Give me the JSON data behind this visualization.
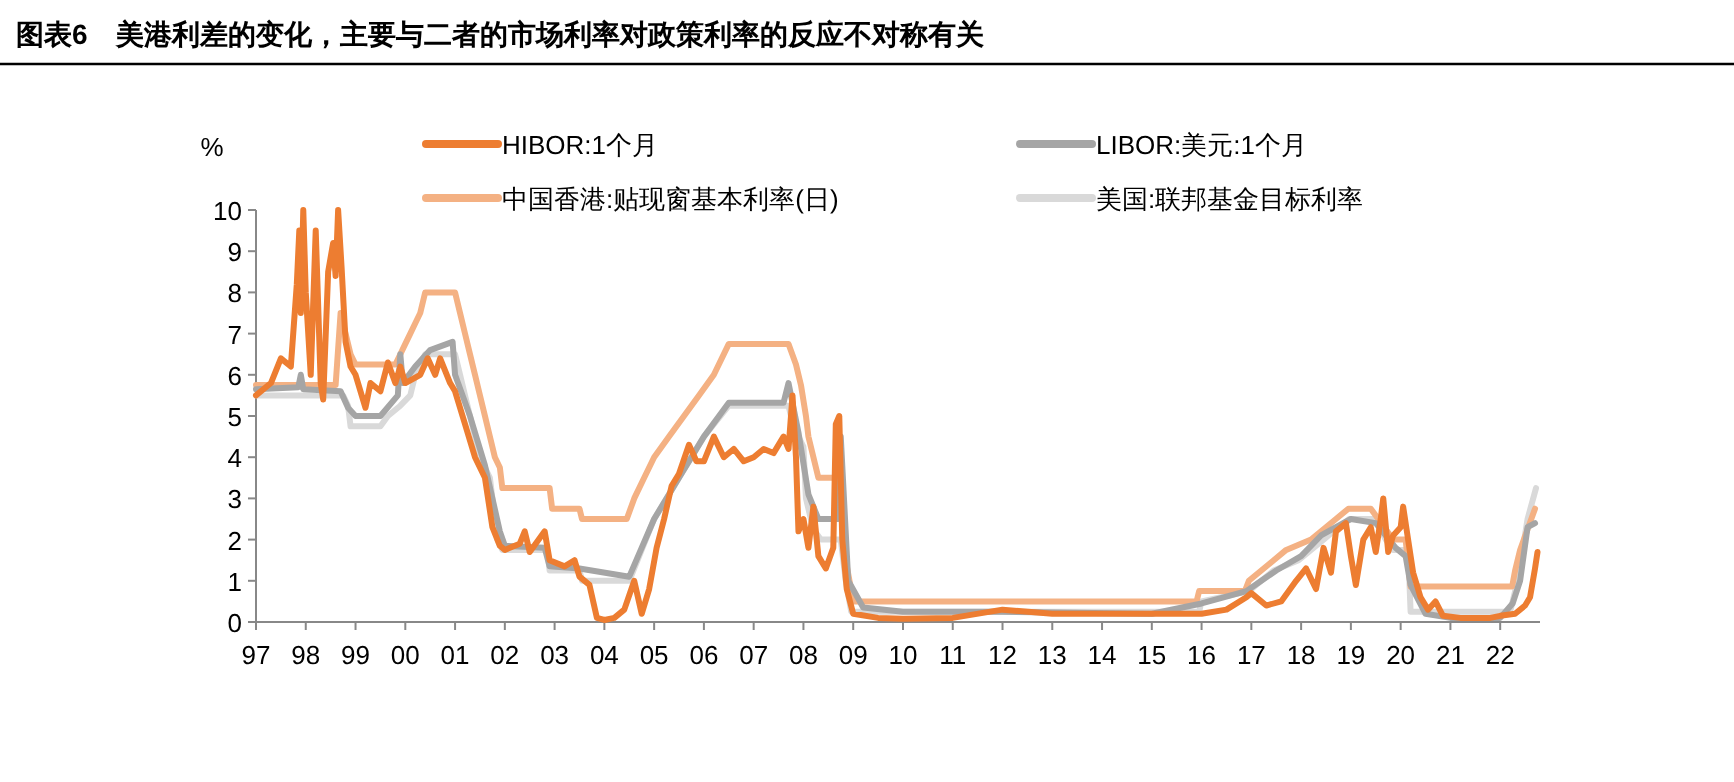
{
  "chart_data": {
    "type": "line",
    "title": "图表6　美港利差的变化，主要与二者的市场利率对政策利率的反应不对称有关",
    "ylabel": "%",
    "xlim": [
      1997,
      2022.8
    ],
    "ylim": [
      0,
      10
    ],
    "yticks": [
      0,
      1,
      2,
      3,
      4,
      5,
      6,
      7,
      8,
      9,
      10
    ],
    "xticks": [
      {
        "value": 1997,
        "label": "97"
      },
      {
        "value": 1998,
        "label": "98"
      },
      {
        "value": 1999,
        "label": "99"
      },
      {
        "value": 2000,
        "label": "00"
      },
      {
        "value": 2001,
        "label": "01"
      },
      {
        "value": 2002,
        "label": "02"
      },
      {
        "value": 2003,
        "label": "03"
      },
      {
        "value": 2004,
        "label": "04"
      },
      {
        "value": 2005,
        "label": "05"
      },
      {
        "value": 2006,
        "label": "06"
      },
      {
        "value": 2007,
        "label": "07"
      },
      {
        "value": 2008,
        "label": "08"
      },
      {
        "value": 2009,
        "label": "09"
      },
      {
        "value": 2010,
        "label": "10"
      },
      {
        "value": 2011,
        "label": "11"
      },
      {
        "value": 2012,
        "label": "12"
      },
      {
        "value": 2013,
        "label": "13"
      },
      {
        "value": 2014,
        "label": "14"
      },
      {
        "value": 2015,
        "label": "15"
      },
      {
        "value": 2016,
        "label": "16"
      },
      {
        "value": 2017,
        "label": "17"
      },
      {
        "value": 2018,
        "label": "18"
      },
      {
        "value": 2019,
        "label": "19"
      },
      {
        "value": 2020,
        "label": "20"
      },
      {
        "value": 2021,
        "label": "21"
      },
      {
        "value": 2022,
        "label": "22"
      }
    ],
    "grid": false,
    "legend": "top",
    "marker": "none",
    "line_style": "solid",
    "series": [
      {
        "name": "HIBOR:1个月",
        "color": "#ed7d31",
        "x": [
          1997.0,
          1997.3,
          1997.5,
          1997.7,
          1997.82,
          1997.87,
          1997.9,
          1997.95,
          1998.0,
          1998.1,
          1998.2,
          1998.3,
          1998.35,
          1998.45,
          1998.55,
          1998.6,
          1998.65,
          1998.72,
          1998.8,
          1998.9,
          1999.0,
          1999.2,
          1999.3,
          1999.5,
          1999.65,
          1999.8,
          1999.9,
          2000.0,
          2000.3,
          2000.45,
          2000.6,
          2000.7,
          2000.9,
          2001.0,
          2001.2,
          2001.4,
          2001.6,
          2001.75,
          2001.9,
          2002.0,
          2002.3,
          2002.4,
          2002.5,
          2002.8,
          2002.9,
          2003.2,
          2003.4,
          2003.5,
          2003.7,
          2003.85,
          2004.0,
          2004.2,
          2004.4,
          2004.6,
          2004.75,
          2004.9,
          2005.05,
          2005.2,
          2005.35,
          2005.5,
          2005.7,
          2005.85,
          2006.0,
          2006.2,
          2006.4,
          2006.6,
          2006.8,
          2007.0,
          2007.2,
          2007.4,
          2007.6,
          2007.7,
          2007.78,
          2007.85,
          2007.9,
          2008.0,
          2008.1,
          2008.2,
          2008.3,
          2008.45,
          2008.6,
          2008.65,
          2008.72,
          2008.78,
          2008.87,
          2009.0,
          2009.5,
          2010,
          2011,
          2012,
          2013,
          2014,
          2015,
          2016,
          2016.5,
          2016.9,
          2017.0,
          2017.3,
          2017.6,
          2017.9,
          2018.1,
          2018.3,
          2018.45,
          2018.6,
          2018.7,
          2018.9,
          2019.0,
          2019.1,
          2019.25,
          2019.4,
          2019.5,
          2019.6,
          2019.65,
          2019.75,
          2019.85,
          2020.0,
          2020.05,
          2020.15,
          2020.25,
          2020.4,
          2020.55,
          2020.7,
          2020.85,
          2021.2,
          2021.8,
          2022.0,
          2022.3,
          2022.5,
          2022.6,
          2022.7,
          2022.75
        ],
        "values": [
          5.5,
          5.8,
          6.4,
          6.2,
          8.2,
          9.5,
          7.5,
          10,
          8,
          6.0,
          9.5,
          5.8,
          5.4,
          8.5,
          9.2,
          8.4,
          10,
          8.6,
          6.8,
          6.2,
          6.0,
          5.2,
          5.8,
          5.6,
          6.3,
          5.8,
          6.2,
          5.8,
          6.0,
          6.4,
          6.0,
          6.4,
          5.8,
          5.6,
          4.8,
          4.0,
          3.5,
          2.3,
          1.85,
          1.75,
          1.9,
          2.2,
          1.7,
          2.2,
          1.5,
          1.35,
          1.5,
          1.1,
          0.9,
          0.1,
          0.05,
          0.1,
          0.3,
          1.0,
          0.2,
          0.8,
          1.8,
          2.5,
          3.3,
          3.6,
          4.3,
          3.9,
          3.9,
          4.5,
          4.0,
          4.2,
          3.9,
          4.0,
          4.2,
          4.1,
          4.5,
          4.2,
          5.5,
          4.0,
          2.2,
          2.5,
          1.8,
          2.8,
          1.6,
          1.3,
          1.8,
          4.8,
          5.0,
          2.0,
          0.8,
          0.2,
          0.1,
          0.08,
          0.1,
          0.3,
          0.2,
          0.2,
          0.2,
          0.2,
          0.3,
          0.6,
          0.7,
          0.4,
          0.5,
          1.0,
          1.3,
          0.8,
          1.8,
          1.2,
          2.2,
          2.4,
          1.6,
          0.9,
          2.0,
          2.3,
          1.7,
          2.5,
          3.0,
          1.7,
          2.1,
          2.3,
          2.8,
          2.0,
          1.2,
          0.6,
          0.3,
          0.5,
          0.15,
          0.1,
          0.1,
          0.15,
          0.2,
          0.4,
          0.6,
          1.3,
          1.7
        ]
      },
      {
        "name": "LIBOR:美元:1个月",
        "color": "#a5a5a5",
        "x": [
          1997.0,
          1997.85,
          1997.9,
          1997.95,
          1998.7,
          1998.85,
          1999.0,
          1999.5,
          1999.85,
          1999.9,
          1999.95,
          2000.2,
          2000.5,
          2000.95,
          2001.0,
          2001.3,
          2001.6,
          2001.9,
          2002.0,
          2002.8,
          2002.9,
          2003.5,
          2004.5,
          2005.0,
          2005.5,
          2006.0,
          2006.5,
          2007.6,
          2007.7,
          2007.9,
          2008.1,
          2008.3,
          2008.7,
          2008.75,
          2008.9,
          2009.2,
          2010,
          2012,
          2015,
          2016,
          2016.9,
          2017.2,
          2017.5,
          2018.0,
          2018.4,
          2018.7,
          2019.0,
          2019.5,
          2019.9,
          2020.1,
          2020.2,
          2020.5,
          2021.0,
          2022.0,
          2022.25,
          2022.4,
          2022.55,
          2022.7
        ],
        "values": [
          5.65,
          5.7,
          6.0,
          5.65,
          5.6,
          5.2,
          5.0,
          5.0,
          5.5,
          6.5,
          5.8,
          6.2,
          6.6,
          6.8,
          6.0,
          5.0,
          3.8,
          2.2,
          1.85,
          1.8,
          1.35,
          1.3,
          1.1,
          2.5,
          3.5,
          4.5,
          5.32,
          5.32,
          5.8,
          4.6,
          3.1,
          2.5,
          2.5,
          4.5,
          1.0,
          0.35,
          0.25,
          0.25,
          0.2,
          0.45,
          0.75,
          1.0,
          1.25,
          1.6,
          2.1,
          2.3,
          2.5,
          2.4,
          1.8,
          1.6,
          0.9,
          0.2,
          0.1,
          0.1,
          0.45,
          1.0,
          2.3,
          2.4
        ]
      },
      {
        "name": "中国香港:贴现窗基本利率(日)",
        "color": "#f4b183",
        "x": [
          1997.0,
          1998.6,
          1998.7,
          1998.9,
          1999.0,
          1999.8,
          1999.9,
          2000.0,
          2000.1,
          2000.2,
          2000.3,
          2000.4,
          2001.0,
          2001.1,
          2001.2,
          2001.3,
          2001.4,
          2001.5,
          2001.6,
          2001.7,
          2001.8,
          2001.9,
          2001.95,
          2002.9,
          2002.95,
          2003.5,
          2003.55,
          2004.45,
          2004.6,
          2004.8,
          2005.0,
          2005.3,
          2005.6,
          2005.9,
          2006.2,
          2006.5,
          2007.7,
          2007.85,
          2007.95,
          2008.05,
          2008.1,
          2008.3,
          2008.7,
          2008.85,
          2009.0,
          2015.9,
          2015.95,
          2016.87,
          2016.95,
          2017.2,
          2017.45,
          2017.7,
          2018.2,
          2018.45,
          2018.7,
          2018.95,
          2019.4,
          2019.55,
          2019.7,
          2019.85,
          2020.1,
          2020.2,
          2022.24,
          2022.3,
          2022.4,
          2022.55,
          2022.7
        ],
        "values": [
          5.75,
          5.75,
          7.5,
          6.5,
          6.25,
          6.25,
          6.5,
          6.75,
          7.0,
          7.25,
          7.5,
          8.0,
          8.0,
          7.5,
          7.0,
          6.5,
          6.0,
          5.5,
          5.0,
          4.5,
          4.0,
          3.75,
          3.25,
          3.25,
          2.75,
          2.75,
          2.5,
          2.5,
          3.0,
          3.5,
          4.0,
          4.5,
          5.0,
          5.5,
          6.0,
          6.75,
          6.75,
          6.25,
          5.75,
          5.0,
          4.5,
          3.5,
          3.5,
          1.5,
          0.5,
          0.5,
          0.75,
          0.75,
          1.0,
          1.25,
          1.5,
          1.75,
          2.0,
          2.25,
          2.5,
          2.75,
          2.75,
          2.5,
          2.25,
          2.0,
          2.0,
          0.86,
          0.86,
          1.25,
          1.75,
          2.25,
          2.75
        ]
      },
      {
        "name": "美国:联邦基金目标利率",
        "color": "#d9d9d9",
        "x": [
          1997.0,
          1998.75,
          1998.85,
          1998.9,
          1999.5,
          1999.65,
          1999.9,
          2000.1,
          2000.2,
          2000.4,
          2001.0,
          2001.1,
          2001.2,
          2001.3,
          2001.4,
          2001.5,
          2001.6,
          2001.7,
          2001.75,
          2001.8,
          2001.85,
          2001.95,
          2002.85,
          2002.9,
          2003.5,
          2003.55,
          2004.5,
          2005.0,
          2005.5,
          2006.0,
          2006.5,
          2007.7,
          2007.8,
          2007.9,
          2008.0,
          2008.05,
          2008.2,
          2008.35,
          2008.75,
          2008.85,
          2008.96,
          2015.95,
          2016.0,
          2016.95,
          2017.2,
          2017.45,
          2017.95,
          2018.2,
          2018.45,
          2018.7,
          2018.97,
          2019.55,
          2019.6,
          2019.7,
          2019.85,
          2020.15,
          2020.2,
          2022.2,
          2022.25,
          2022.35,
          2022.45,
          2022.55,
          2022.72
        ],
        "values": [
          5.5,
          5.5,
          5.25,
          4.75,
          4.75,
          5.0,
          5.25,
          5.5,
          6.0,
          6.5,
          6.5,
          6.0,
          5.5,
          5.0,
          4.5,
          4.0,
          3.75,
          3.5,
          3.0,
          2.5,
          2.0,
          1.75,
          1.75,
          1.25,
          1.25,
          1.0,
          1.0,
          2.5,
          3.5,
          4.5,
          5.25,
          5.25,
          4.75,
          4.5,
          4.25,
          3.0,
          2.25,
          2.0,
          2.0,
          1.0,
          0.25,
          0.25,
          0.5,
          0.75,
          1.0,
          1.25,
          1.5,
          1.75,
          2.0,
          2.25,
          2.5,
          2.5,
          2.25,
          2.0,
          1.75,
          1.75,
          0.25,
          0.25,
          0.5,
          1.0,
          1.75,
          2.5,
          3.25
        ]
      }
    ]
  }
}
